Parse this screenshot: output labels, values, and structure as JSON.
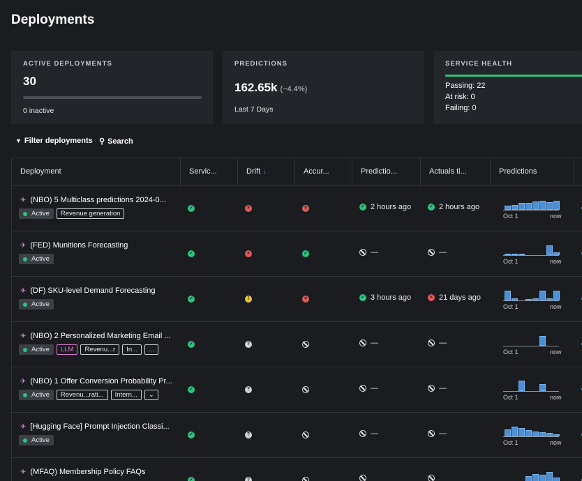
{
  "page": {
    "title": "Deployments"
  },
  "cards": {
    "active": {
      "label": "ACTIVE DEPLOYMENTS",
      "value": "30",
      "sub": "0 inactive",
      "fraction": 0
    },
    "predictions": {
      "label": "PREDICTIONS",
      "value": "162.65k",
      "change": "(−4.4%)",
      "sub": "Last 7 Days"
    },
    "health": {
      "label": "SERVICE HEALTH",
      "passing": "Passing: 22",
      "at_risk": "At risk: 0",
      "failing": "Failing: 0"
    }
  },
  "toolbar": {
    "filter_label": "Filter deployments",
    "search_label": "Search"
  },
  "table": {
    "columns": [
      "Deployment",
      "Servic...",
      "Drift",
      "Accur...",
      "Predictio...",
      "Actuals ti...",
      "Predictions"
    ],
    "rows": [
      {
        "name": "(NBO) 5 Multiclass predictions 2024-0...",
        "status": "Active",
        "tags": [
          "Revenue generation"
        ],
        "service": "ok",
        "drift": "fail",
        "accuracy": "fail",
        "pred_time": {
          "state": "ok",
          "text": "2 hours ago"
        },
        "actuals_time": {
          "state": "ok",
          "text": "2 hours ago"
        },
        "spark": {
          "start": "Oct 1",
          "end": "now",
          "bars": [
            0.35,
            0.45,
            0.6,
            0.65,
            0.75,
            0.8,
            0.7,
            0.8
          ]
        }
      },
      {
        "name": "(FED) Munitions Forecasting",
        "status": "Active",
        "tags": [],
        "service": "ok",
        "drift": "fail",
        "accuracy": "ok",
        "pred_time": {
          "state": "none",
          "text": "—"
        },
        "actuals_time": {
          "state": "none",
          "text": "—"
        },
        "spark": {
          "start": "Oct 1",
          "end": "now",
          "bars": [
            0.05,
            0.05,
            0.05,
            0,
            0,
            0,
            0.9,
            0.25
          ]
        }
      },
      {
        "name": "(DF) SKU-level Demand Forecasting",
        "status": "Active",
        "tags": [],
        "service": "ok",
        "drift": "warn",
        "accuracy": "fail",
        "pred_time": {
          "state": "ok",
          "text": "3 hours ago"
        },
        "actuals_time": {
          "state": "fail",
          "text": "21 days ago"
        },
        "spark": {
          "start": "Oct 1",
          "end": "now",
          "bars": [
            0.9,
            0.2,
            0,
            0.1,
            0.2,
            0.9,
            0.2,
            0.9
          ]
        }
      },
      {
        "name": "(NBO) 2 Personalized Marketing Email ...",
        "status": "Active",
        "tags": [
          "LLM",
          "Revenu...r",
          "In...",
          "..."
        ],
        "service": "ok",
        "drift": "unknown",
        "accuracy": "none",
        "pred_time": {
          "state": "none",
          "text": "—"
        },
        "actuals_time": {
          "state": "none",
          "text": "—"
        },
        "spark": {
          "start": "Oct 1",
          "end": "now",
          "bars": [
            0,
            0,
            0,
            0,
            0,
            0.9,
            0,
            0
          ]
        }
      },
      {
        "name": "(NBO) 1 Offer Conversion Probability Pr...",
        "status": "Active",
        "tags": [
          "Revenu...rati...",
          "Intern...",
          "⌄"
        ],
        "service": "ok",
        "drift": "unknown",
        "accuracy": "none",
        "pred_time": {
          "state": "none",
          "text": "—"
        },
        "actuals_time": {
          "state": "none",
          "text": "—"
        },
        "spark": {
          "start": "Oct 1",
          "end": "now",
          "bars": [
            0,
            0,
            0.95,
            0,
            0,
            0.65,
            0,
            0
          ]
        }
      },
      {
        "name": "[Hugging Face] Prompt Injection Classi...",
        "status": "Active",
        "tags": [],
        "service": "ok",
        "drift": "unknown",
        "accuracy": "none",
        "pred_time": {
          "state": "none",
          "text": "—"
        },
        "actuals_time": {
          "state": "none",
          "text": "—"
        },
        "spark": {
          "start": "Oct 1",
          "end": "now",
          "bars": [
            0.65,
            0.9,
            0.75,
            0.55,
            0.45,
            0.4,
            0.3,
            0.2
          ]
        }
      },
      {
        "name": "(MFAQ) Membership Policy FAQs",
        "status": "",
        "tags": [],
        "service": "ok",
        "drift": "unknown",
        "accuracy": "none",
        "pred_time": {
          "state": "none",
          "text": ""
        },
        "actuals_time": {
          "state": "none",
          "text": ""
        },
        "spark": {
          "start": "",
          "end": "",
          "bars": [
            0,
            0,
            0,
            0.5,
            0.7,
            0.6,
            0.9,
            0.4
          ]
        }
      }
    ]
  },
  "colors": {
    "ok": "#2ec27e",
    "fail": "#e05a5a",
    "warn": "#e8c441",
    "accent": "#4a90d9"
  }
}
